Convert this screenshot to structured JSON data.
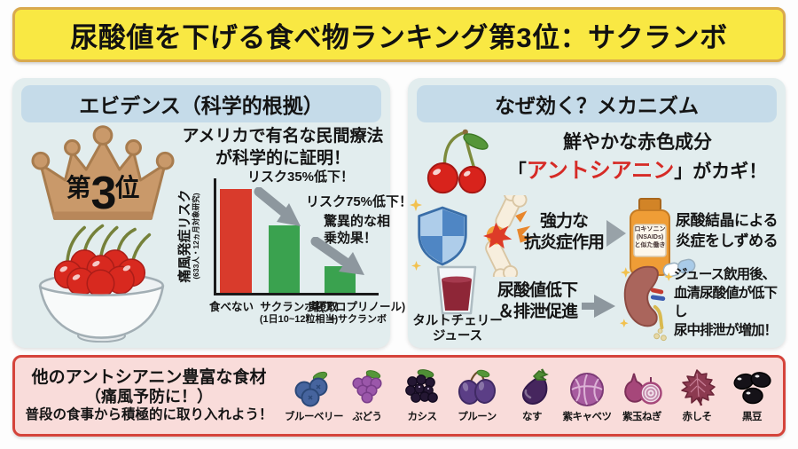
{
  "title": "尿酸値を下げる食べ物ランキング第3位：サクランボ",
  "evidence_panel": {
    "header": "エビデンス（科学的根拠）",
    "rank": {
      "prefix": "第",
      "number": "3",
      "suffix": "位"
    },
    "claim_line1": "アメリカで有名な民間療法",
    "claim_line2": "が科学的に証明！"
  },
  "chart_data": {
    "type": "bar",
    "categories": [
      "食べない",
      "サクランボ摂取(1日10~12粒相当)",
      "薬(アロプリノール)＋サクランボ"
    ],
    "values": [
      100,
      65,
      25
    ],
    "ylim": [
      0,
      110
    ],
    "ylabel": "痛風発症リスク",
    "ylabel_note": "(633人・12ヵ月対象研究)",
    "bar_colors": [
      "#d93b2c",
      "#3aa24f",
      "#3aa24f"
    ],
    "grid": false,
    "legend": false,
    "annotations": [
      {
        "text": "リスク35%低下！"
      },
      {
        "text": "リスク75%低下！"
      },
      {
        "text": "驚異的な相乗効果！"
      }
    ],
    "xlabels": [
      {
        "line1": "食べない",
        "line2": ""
      },
      {
        "line1": "サクランボ摂取",
        "line2": "(1日10~12粒相当)"
      },
      {
        "line1": "薬(アロプリノール)",
        "line2": "＋サクランボ"
      }
    ]
  },
  "mechanism_panel": {
    "header": "なぜ効く？メカニズム",
    "intro_line1": "鮮やかな赤色成分",
    "intro_open": "「",
    "intro_highlight": "アントシアニン",
    "intro_close": "」",
    "intro_tail": "がカギ！",
    "row_antiinflammatory": {
      "label_line1": "強力な",
      "label_line2": "抗炎症作用",
      "bottle_line1": "ロキソニン",
      "bottle_line2": "(NSAIDs)",
      "bottle_line3": "と似た働き",
      "result_line1": "尿酸結晶による",
      "result_line2": "炎症をしずめる"
    },
    "row_uric_acid": {
      "juice_caption_line1": "タルトチェリー",
      "juice_caption_line2": "ジュース",
      "label_line1": "尿酸値低下",
      "label_line2": "＆排泄促進",
      "result_line1": "ジュース飲用後、",
      "result_line2": "血清尿酸値が低下し",
      "result_line3": "尿中排泄が増加！"
    }
  },
  "bottom_panel": {
    "title_line1": "他のアントシアニン豊富な食材",
    "title_line2": "（痛風予防に！）",
    "title_line3": "普段の食事から積極的に取り入れよう！",
    "items": [
      {
        "label": "ブルーベリー",
        "icon": "blueberry-icon"
      },
      {
        "label": "ぶどう",
        "icon": "grape-icon"
      },
      {
        "label": "カシス",
        "icon": "cassis-icon"
      },
      {
        "label": "プルーン",
        "icon": "prune-icon"
      },
      {
        "label": "なす",
        "icon": "eggplant-icon"
      },
      {
        "label": "紫キャベツ",
        "icon": "purple-cabbage-icon"
      },
      {
        "label": "紫玉ねぎ",
        "icon": "red-onion-icon"
      },
      {
        "label": "赤しそ",
        "icon": "red-shiso-icon"
      },
      {
        "label": "黒豆",
        "icon": "black-soybean-icon"
      }
    ]
  },
  "colors": {
    "banner_bg": "#f9e843",
    "banner_border": "#d9a94e",
    "panel_bg": "#e2edee",
    "panel_header_bg": "#c5dbe9",
    "bottom_bg": "#f9dcda",
    "bottom_border": "#d5443b",
    "bar_red": "#d93b2c",
    "bar_green": "#3aa24f",
    "accent_red": "#d62b26",
    "arrow_gray": "#8d979e"
  }
}
